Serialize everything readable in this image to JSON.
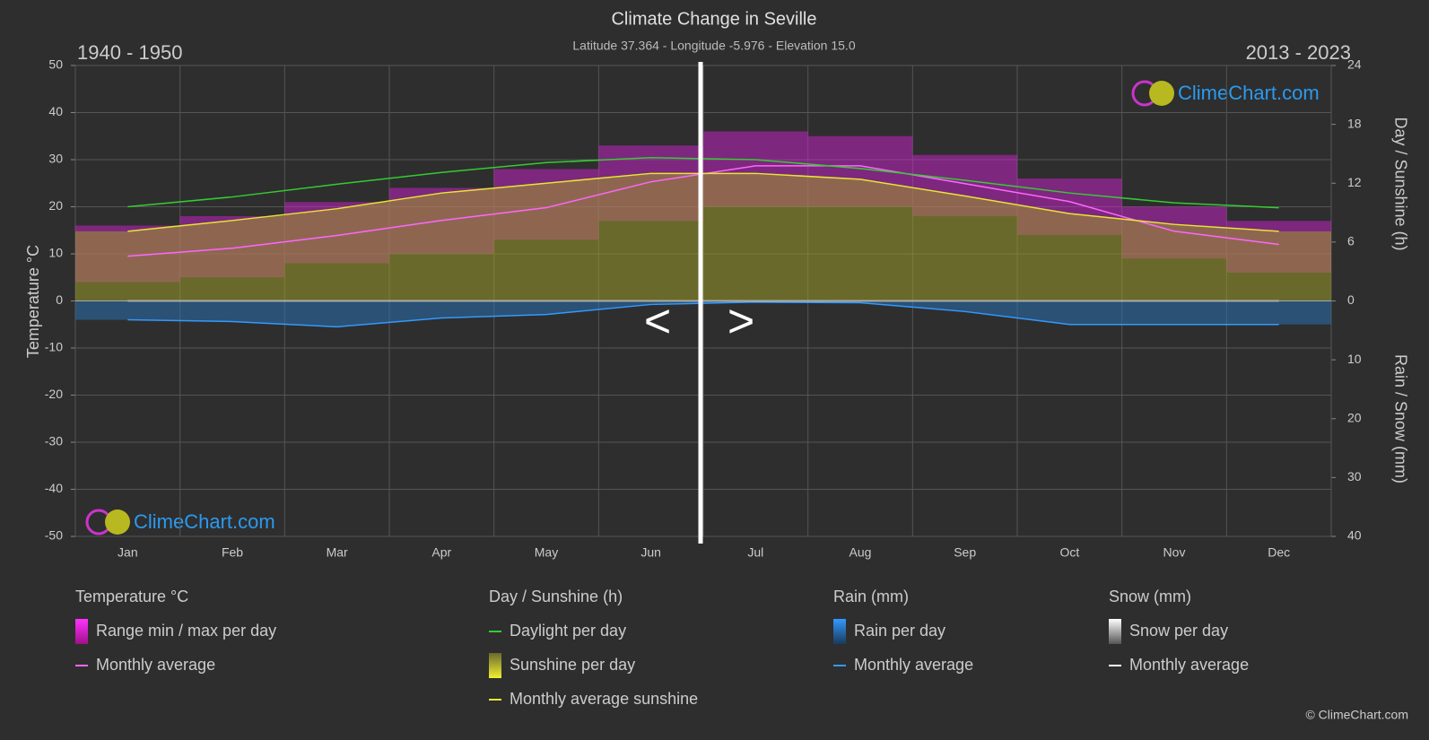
{
  "chart_data": {
    "type": "line",
    "title": "Climate Change in Seville",
    "subtitle": "Latitude 37.364 - Longitude -5.976 - Elevation 15.0",
    "period_left": "1940 - 1950",
    "period_right": "2013 - 2023",
    "y_label": "Temperature °C",
    "y2_label": "Day / Sunshine (h)",
    "y3_label": "Rain / Snow (mm)",
    "categories": [
      "Jan",
      "Feb",
      "Mar",
      "Apr",
      "May",
      "Jun",
      "Jul",
      "Aug",
      "Sep",
      "Oct",
      "Nov",
      "Dec"
    ],
    "ylim": [
      -50,
      50
    ],
    "yticks": [
      -50,
      -40,
      -30,
      -20,
      -10,
      0,
      10,
      20,
      30,
      40,
      50
    ],
    "y2lim": [
      0,
      24
    ],
    "y2ticks": [
      0,
      6,
      12,
      18,
      24
    ],
    "y3lim": [
      0,
      40
    ],
    "y3ticks": [
      10,
      20,
      30,
      40
    ],
    "grid": true,
    "legend_groups": [
      "Temperature °C",
      "Day / Sunshine (h)",
      "Rain (mm)",
      "Snow (mm)"
    ],
    "series": [
      {
        "name": "Range min / max per day",
        "kind": "range",
        "group": 0,
        "color": "#e020e0",
        "min_values": [
          4,
          5,
          8,
          10,
          13,
          17,
          20,
          20,
          18,
          14,
          9,
          6
        ],
        "values": [
          16,
          18,
          21,
          24,
          28,
          33,
          36,
          35,
          31,
          26,
          20,
          17
        ]
      },
      {
        "name": "Monthly average",
        "kind": "line",
        "group": 0,
        "color": "#ff66ff",
        "values": [
          9.5,
          11.2,
          13.9,
          17.1,
          19.8,
          25.3,
          28.7,
          28.7,
          24.9,
          21.1,
          14.8,
          12
        ]
      },
      {
        "name": "Daylight per day",
        "kind": "line",
        "group": 1,
        "axis": "y2",
        "color": "#33cc33",
        "values": [
          9.6,
          10.6,
          11.9,
          13.1,
          14.1,
          14.6,
          14.4,
          13.5,
          12.3,
          11.0,
          10.0,
          9.5
        ]
      },
      {
        "name": "Sunshine per day",
        "kind": "area",
        "group": 1,
        "axis": "y2",
        "color": "#9a9a2a",
        "values": [
          7.1,
          8.2,
          9.4,
          11.0,
          12.0,
          13.0,
          13.0,
          12.4,
          10.7,
          8.9,
          7.8,
          7.1
        ]
      },
      {
        "name": "Monthly average sunshine",
        "kind": "line",
        "group": 1,
        "axis": "y2",
        "color": "#e6e633",
        "values": [
          7.1,
          8.2,
          9.4,
          11.0,
          12.0,
          13.0,
          13.0,
          12.4,
          10.7,
          8.9,
          7.8,
          7.1
        ]
      },
      {
        "name": "Rain per day",
        "kind": "area",
        "group": 2,
        "axis": "y3",
        "color": "#2a6fb0",
        "values": [
          3.2,
          3.5,
          4.4,
          2.9,
          2.3,
          0.6,
          0.2,
          0.3,
          1.8,
          4.0,
          4.0,
          4.0
        ]
      },
      {
        "name": "Monthly average",
        "kind": "line",
        "group": 2,
        "axis": "y3",
        "color": "#3399ff",
        "values": [
          3.2,
          3.5,
          4.4,
          2.9,
          2.3,
          0.6,
          0.2,
          0.3,
          1.8,
          4.0,
          4.0,
          4.0
        ]
      },
      {
        "name": "Snow per day",
        "kind": "area",
        "group": 3,
        "axis": "y3",
        "color": "#cccccc",
        "values": [
          0,
          0,
          0,
          0,
          0,
          0,
          0,
          0,
          0,
          0,
          0,
          0
        ]
      },
      {
        "name": "Monthly average",
        "kind": "line",
        "group": 3,
        "axis": "y3",
        "color": "#ffffff",
        "values": [
          0,
          0,
          0,
          0,
          0,
          0,
          0,
          0,
          0,
          0,
          0,
          0
        ]
      }
    ]
  },
  "logo_text": "ClimeChart.com",
  "copyright": "© ClimeChart.com",
  "nav": {
    "prev": "<",
    "next": ">"
  }
}
